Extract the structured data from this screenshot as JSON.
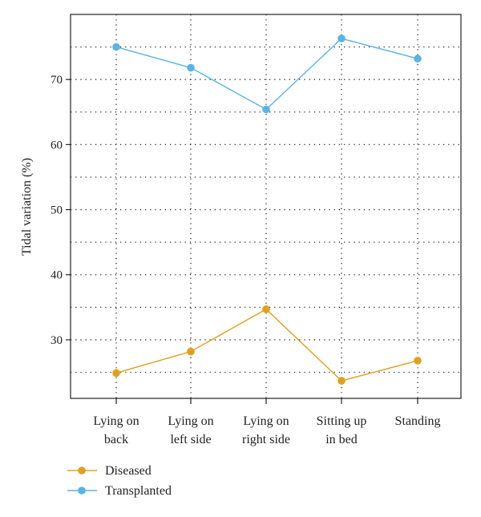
{
  "chart_data": {
    "type": "line",
    "categories": [
      [
        "Lying on",
        "back"
      ],
      [
        "Lying on",
        "left side"
      ],
      [
        "Lying on",
        "right side"
      ],
      [
        "Sitting up",
        "in bed"
      ],
      [
        "Standing"
      ]
    ],
    "ylabel": "Tidal variation (%)",
    "xlabel": "",
    "ylim": [
      21,
      80
    ],
    "yticks": [
      30,
      40,
      50,
      60,
      70
    ],
    "ygrid_minor": [
      25,
      35,
      45,
      55,
      65,
      75
    ],
    "grid": true,
    "legend_position": "bottom-left",
    "series": [
      {
        "name": "Diseased",
        "color": "#E0A020",
        "values": [
          24.9,
          28.2,
          34.7,
          23.7,
          26.8
        ]
      },
      {
        "name": "Transplanted",
        "color": "#5BB4E3",
        "values": [
          75.0,
          71.8,
          65.4,
          76.3,
          73.2
        ]
      }
    ]
  }
}
